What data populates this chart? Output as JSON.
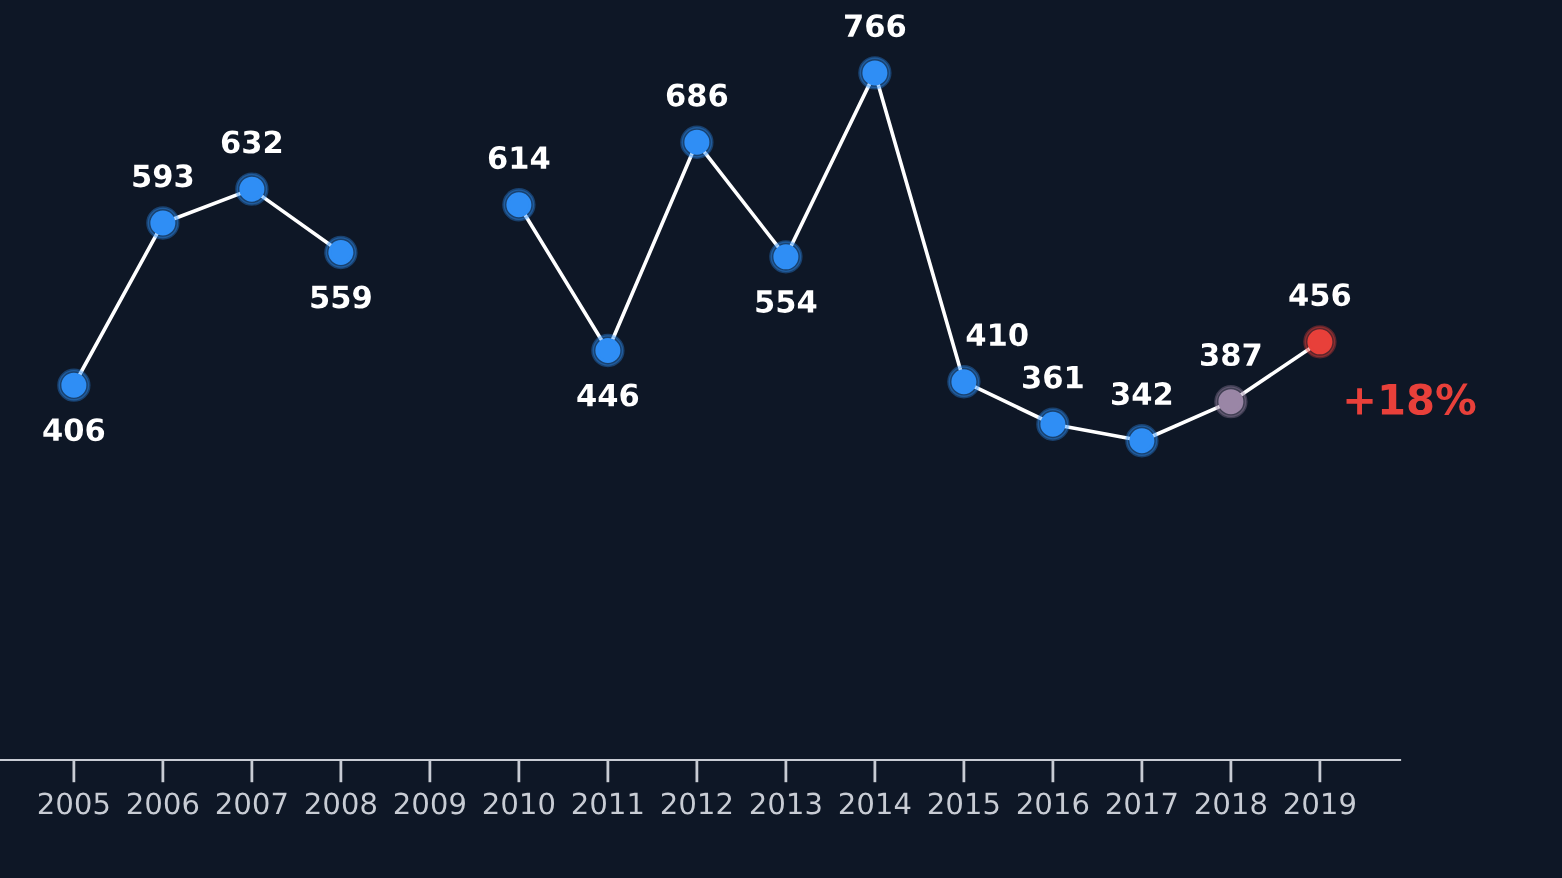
{
  "chart_data": {
    "type": "line",
    "categories": [
      "2005",
      "2006",
      "2007",
      "2008",
      "2009",
      "2010",
      "2011",
      "2012",
      "2013",
      "2014",
      "2015",
      "2016",
      "2017",
      "2018",
      "2019"
    ],
    "series": [
      {
        "color": "#ffffff",
        "values": [
          406,
          593,
          632,
          559,
          null,
          614,
          446,
          686,
          554,
          766,
          410,
          361,
          342,
          387,
          456
        ],
        "colors": [
          "#2f8ef5",
          "#2f8ef5",
          "#2f8ef5",
          "#2f8ef5",
          "#2f8ef5",
          "#2f8ef5",
          "#2f8ef5",
          "#2f8ef5",
          "#2f8ef5",
          "#2f8ef5",
          "#2f8ef5",
          "#2f8ef5",
          "#2f8ef5",
          "#9a86a6",
          "#e8403a"
        ]
      }
    ],
    "ylim": [
      -26,
      850
    ],
    "tick_labels": "x",
    "data_labels": true,
    "marker": "circle",
    "line_style": "solid",
    "grid": false,
    "annotations": [
      {
        "text": "+18%",
        "x": "2019",
        "y": 456
      }
    ]
  }
}
